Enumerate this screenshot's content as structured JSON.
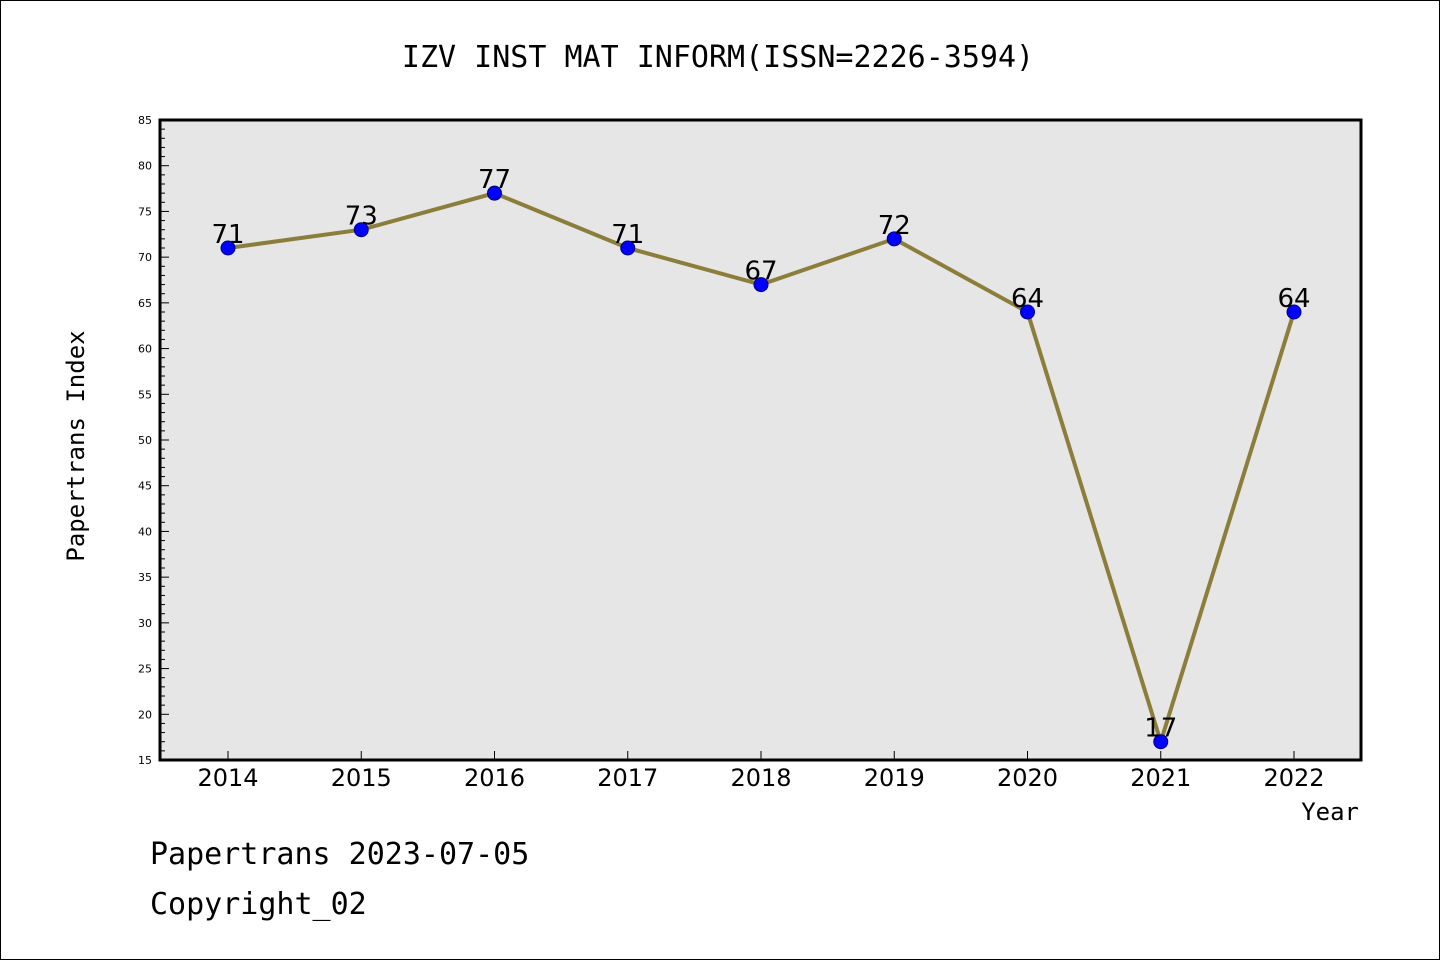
{
  "chart_data": {
    "type": "line",
    "title": "IZV INST MAT INFORM(ISSN=2226-3594)",
    "xlabel": "Year",
    "ylabel": "Papertrans Index",
    "categories": [
      "2014",
      "2015",
      "2016",
      "2017",
      "2018",
      "2019",
      "2020",
      "2021",
      "2022"
    ],
    "values": [
      71,
      73,
      77,
      71,
      67,
      72,
      64,
      17,
      64
    ],
    "data_labels": [
      "71",
      "73",
      "77",
      "71",
      "67",
      "72",
      "64",
      "17",
      "64"
    ],
    "ylim": [
      15,
      85
    ],
    "yticks": [
      "15",
      "20",
      "25",
      "30",
      "35",
      "40",
      "45",
      "50",
      "55",
      "60",
      "65",
      "70",
      "75",
      "80",
      "85"
    ],
    "grid": false,
    "legend": "none",
    "colors": {
      "line": "#8b7d3a",
      "marker": "#0000ff",
      "plot_background": "#e6e6e6"
    }
  },
  "footer": {
    "line1": "Papertrans 2023-07-05",
    "line2": "Copyright_02"
  }
}
